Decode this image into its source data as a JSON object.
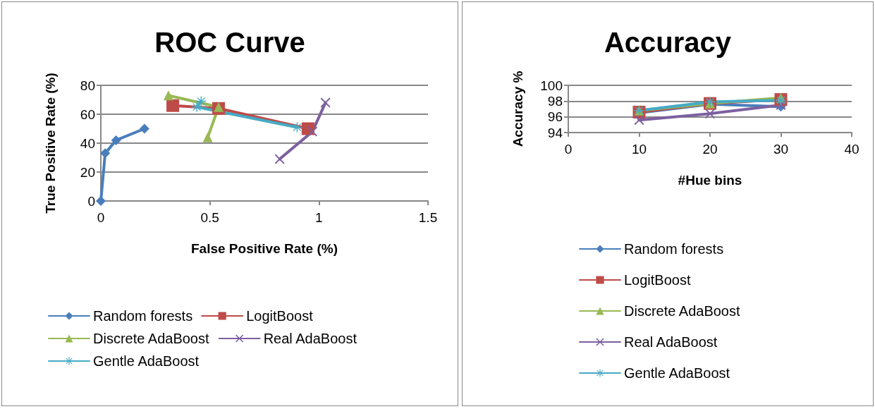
{
  "chart_data": [
    {
      "type": "line",
      "title": "ROC Curve",
      "xlabel": "False Positive Rate (%)",
      "ylabel": "True Positive Rate (%)",
      "xlim": [
        0,
        1.5
      ],
      "xticks": [
        0,
        0.5,
        1,
        1.5
      ],
      "ylim": [
        0,
        80
      ],
      "yticks": [
        0,
        20,
        40,
        60,
        80
      ],
      "grid": "y",
      "legend": "bottom",
      "series": [
        {
          "name": "Random forests",
          "color": "#4a7ebb",
          "marker": "diamond",
          "x": [
            0,
            0.02,
            0.07,
            0.2
          ],
          "values": [
            0,
            33,
            42,
            50
          ]
        },
        {
          "name": "LogitBoost",
          "color": "#be4b48",
          "marker": "square",
          "x": [
            0.33,
            0.54,
            0.95
          ],
          "values": [
            66,
            64,
            50
          ]
        },
        {
          "name": "Discrete AdaBoost",
          "color": "#98b954",
          "marker": "triangle",
          "x": [
            0.31,
            0.54,
            0.49
          ],
          "values": [
            73,
            65,
            44
          ]
        },
        {
          "name": "Real AdaBoost",
          "color": "#7d60a0",
          "marker": "cross",
          "x": [
            0.82,
            0.97,
            1.03
          ],
          "values": [
            29,
            48,
            68
          ]
        },
        {
          "name": "Gentle AdaBoost",
          "color": "#46aac5",
          "marker": "star",
          "x": [
            0.46,
            0.44,
            0.9
          ],
          "values": [
            69,
            65,
            51
          ]
        }
      ]
    },
    {
      "type": "line",
      "title": "Accuracy",
      "xlabel": "#Hue bins",
      "ylabel": "Accuracy %",
      "xlim": [
        0,
        40
      ],
      "xticks": [
        0,
        10,
        20,
        30,
        40
      ],
      "ylim": [
        94,
        100
      ],
      "yticks": [
        94,
        96,
        98,
        100
      ],
      "grid": "y",
      "legend": "bottom",
      "series": [
        {
          "name": "Random forests",
          "color": "#4a7ebb",
          "marker": "diamond",
          "x": [
            10,
            20,
            30
          ],
          "values": [
            96.5,
            97.6,
            97.3
          ]
        },
        {
          "name": "LogitBoost",
          "color": "#be4b48",
          "marker": "square",
          "x": [
            10,
            20,
            30
          ],
          "values": [
            96.6,
            97.7,
            98.2
          ]
        },
        {
          "name": "Discrete AdaBoost",
          "color": "#98b954",
          "marker": "triangle",
          "x": [
            10,
            20,
            30
          ],
          "values": [
            96.8,
            97.7,
            98.4
          ]
        },
        {
          "name": "Real AdaBoost",
          "color": "#7d60a0",
          "marker": "cross",
          "x": [
            10,
            20,
            30
          ],
          "values": [
            95.6,
            96.4,
            97.5
          ]
        },
        {
          "name": "Gentle AdaBoost",
          "color": "#46aac5",
          "marker": "star",
          "x": [
            10,
            20,
            30
          ],
          "values": [
            96.8,
            97.9,
            98.1
          ]
        }
      ]
    }
  ]
}
